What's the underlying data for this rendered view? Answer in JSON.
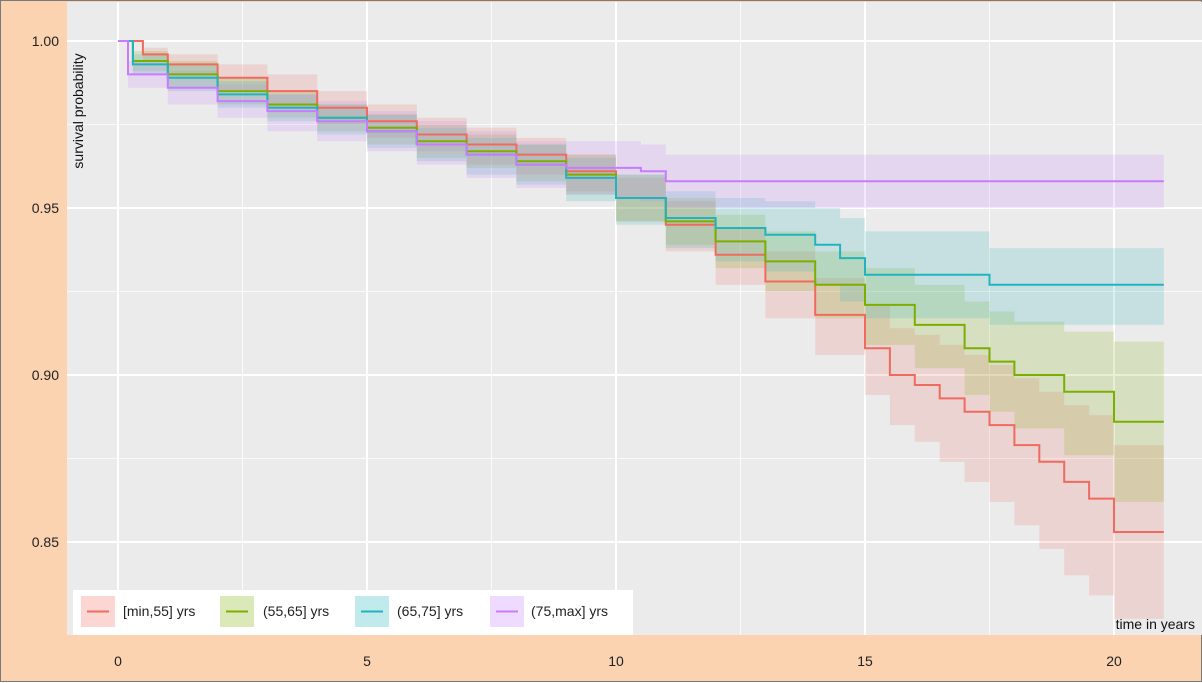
{
  "chart_data": {
    "type": "line",
    "xlabel": "time in years",
    "ylabel": "survival probability",
    "xlim": [
      0,
      21
    ],
    "ylim": [
      0.826,
      1.005
    ],
    "x_ticks": [
      0,
      5,
      10,
      15,
      20
    ],
    "y_ticks": [
      0.85,
      0.9,
      0.95,
      1.0
    ],
    "x_tick_labels": [
      "0",
      "5",
      "10",
      "15",
      "20"
    ],
    "y_tick_labels": [
      "0.85",
      "0.90",
      "0.95",
      "1.00"
    ],
    "grid": true,
    "legend_position": "bottom-left",
    "series": [
      {
        "name": "[min,55] yrs",
        "color": "#f06a5f",
        "x": [
          0,
          0.5,
          1,
          2,
          3,
          4,
          5,
          6,
          7,
          8,
          9,
          10,
          11,
          12,
          13,
          14,
          15,
          15.5,
          16,
          16.5,
          17,
          17.5,
          18,
          18.5,
          19,
          19.5,
          20,
          21
        ],
        "y": [
          1.0,
          0.996,
          0.993,
          0.989,
          0.985,
          0.98,
          0.976,
          0.972,
          0.969,
          0.966,
          0.961,
          0.953,
          0.945,
          0.936,
          0.928,
          0.918,
          0.908,
          0.9,
          0.897,
          0.893,
          0.889,
          0.885,
          0.879,
          0.874,
          0.868,
          0.863,
          0.853,
          0.853
        ],
        "ci_lower": [
          1.0,
          0.994,
          0.99,
          0.985,
          0.98,
          0.975,
          0.971,
          0.967,
          0.963,
          0.96,
          0.955,
          0.946,
          0.937,
          0.927,
          0.917,
          0.906,
          0.894,
          0.885,
          0.88,
          0.874,
          0.868,
          0.862,
          0.855,
          0.848,
          0.84,
          0.834,
          0.827,
          0.827
        ],
        "ci_upper": [
          1.0,
          0.998,
          0.996,
          0.993,
          0.99,
          0.985,
          0.981,
          0.977,
          0.974,
          0.971,
          0.966,
          0.959,
          0.952,
          0.944,
          0.937,
          0.929,
          0.921,
          0.914,
          0.912,
          0.909,
          0.906,
          0.903,
          0.899,
          0.895,
          0.891,
          0.888,
          0.879,
          0.879
        ]
      },
      {
        "name": "(55,65] yrs",
        "color": "#7cae00",
        "x": [
          0,
          0.3,
          1,
          2,
          3,
          4,
          5,
          6,
          7,
          8,
          9,
          10,
          11,
          12,
          13,
          14,
          15,
          16,
          17,
          17.5,
          18,
          19,
          20,
          21
        ],
        "y": [
          1.0,
          0.994,
          0.99,
          0.985,
          0.981,
          0.977,
          0.974,
          0.97,
          0.967,
          0.964,
          0.96,
          0.953,
          0.946,
          0.94,
          0.934,
          0.927,
          0.921,
          0.915,
          0.908,
          0.904,
          0.9,
          0.895,
          0.886,
          0.886
        ],
        "ci_lower": [
          1.0,
          0.991,
          0.986,
          0.981,
          0.977,
          0.973,
          0.969,
          0.965,
          0.962,
          0.958,
          0.954,
          0.946,
          0.939,
          0.932,
          0.925,
          0.917,
          0.909,
          0.902,
          0.894,
          0.889,
          0.884,
          0.876,
          0.862,
          0.862
        ],
        "ci_upper": [
          1.0,
          0.997,
          0.994,
          0.989,
          0.985,
          0.981,
          0.978,
          0.975,
          0.972,
          0.969,
          0.966,
          0.96,
          0.953,
          0.948,
          0.943,
          0.937,
          0.932,
          0.927,
          0.922,
          0.919,
          0.916,
          0.913,
          0.91,
          0.91
        ]
      },
      {
        "name": "(65,75] yrs",
        "color": "#22b3bd",
        "x": [
          0,
          0.3,
          1,
          2,
          3,
          4,
          5,
          6,
          7,
          8,
          9,
          10,
          11,
          12,
          13,
          14,
          14.5,
          15,
          16,
          17,
          17.5,
          18,
          19,
          20,
          21
        ],
        "y": [
          1.0,
          0.993,
          0.989,
          0.984,
          0.98,
          0.977,
          0.973,
          0.969,
          0.966,
          0.963,
          0.959,
          0.953,
          0.947,
          0.944,
          0.942,
          0.939,
          0.935,
          0.93,
          0.93,
          0.93,
          0.927,
          0.927,
          0.927,
          0.927,
          0.927
        ],
        "ci_lower": [
          1.0,
          0.99,
          0.985,
          0.98,
          0.976,
          0.972,
          0.968,
          0.964,
          0.96,
          0.957,
          0.952,
          0.945,
          0.938,
          0.934,
          0.931,
          0.927,
          0.922,
          0.917,
          0.917,
          0.917,
          0.915,
          0.915,
          0.915,
          0.915,
          0.915
        ],
        "ci_upper": [
          1.0,
          0.996,
          0.993,
          0.988,
          0.984,
          0.981,
          0.978,
          0.974,
          0.971,
          0.969,
          0.965,
          0.96,
          0.955,
          0.953,
          0.952,
          0.95,
          0.947,
          0.943,
          0.943,
          0.943,
          0.938,
          0.938,
          0.938,
          0.938,
          0.938
        ]
      },
      {
        "name": "(75,max] yrs",
        "color": "#c77cff",
        "x": [
          0,
          0.2,
          1,
          2,
          3,
          4,
          5,
          6,
          7,
          8,
          9,
          10,
          10.5,
          11,
          12,
          13,
          14,
          15,
          16,
          17,
          18,
          19,
          20,
          21
        ],
        "y": [
          1.0,
          0.99,
          0.986,
          0.982,
          0.979,
          0.976,
          0.973,
          0.969,
          0.966,
          0.963,
          0.962,
          0.962,
          0.961,
          0.958,
          0.958,
          0.958,
          0.958,
          0.958,
          0.958,
          0.958,
          0.958,
          0.958,
          0.958,
          0.958
        ],
        "ci_lower": [
          1.0,
          0.986,
          0.981,
          0.977,
          0.973,
          0.97,
          0.967,
          0.963,
          0.959,
          0.956,
          0.954,
          0.953,
          0.952,
          0.95,
          0.95,
          0.95,
          0.95,
          0.95,
          0.95,
          0.95,
          0.95,
          0.95,
          0.95,
          0.95
        ],
        "ci_upper": [
          1.0,
          0.994,
          0.991,
          0.987,
          0.984,
          0.982,
          0.979,
          0.976,
          0.973,
          0.97,
          0.97,
          0.97,
          0.969,
          0.966,
          0.966,
          0.966,
          0.966,
          0.966,
          0.966,
          0.966,
          0.966,
          0.966,
          0.966,
          0.966
        ]
      }
    ]
  }
}
